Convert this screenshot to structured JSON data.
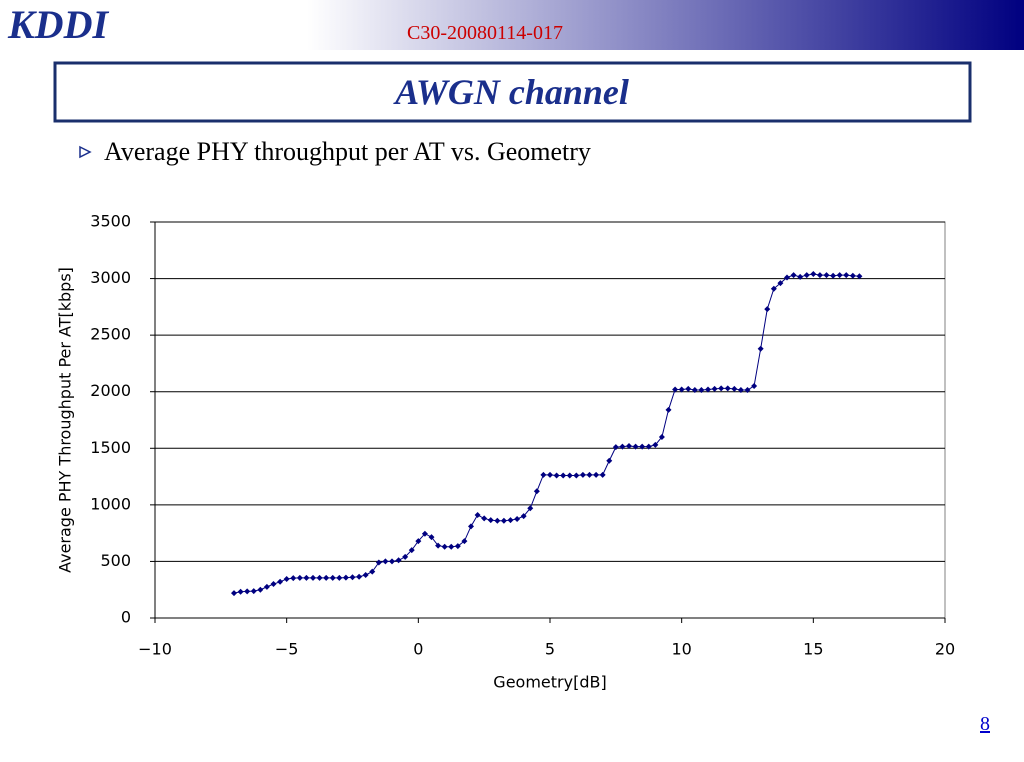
{
  "header": {
    "logo": "KDDI",
    "doc_id": "C30-20080114-017",
    "title": "AWGN channel",
    "bullet": "Average PHY throughput per AT vs. Geometry",
    "page_number": "8"
  },
  "chart_data": {
    "type": "line",
    "xlabel": "Geometry[dB]",
    "ylabel": "Average PHY Throughput Per AT[kbps]",
    "x": [
      -7,
      -6.75,
      -6.5,
      -6.25,
      -6,
      -5.75,
      -5.5,
      -5.25,
      -5,
      -4.75,
      -4.5,
      -4.25,
      -4,
      -3.75,
      -3.5,
      -3.25,
      -3,
      -2.75,
      -2.5,
      -2.25,
      -2,
      -1.75,
      -1.5,
      -1.25,
      -1,
      -0.75,
      -0.5,
      -0.25,
      0,
      0.25,
      0.5,
      0.75,
      1,
      1.25,
      1.5,
      1.75,
      2,
      2.25,
      2.5,
      2.75,
      3,
      3.25,
      3.5,
      3.75,
      4,
      4.25,
      4.5,
      4.75,
      5,
      5.25,
      5.5,
      5.75,
      6,
      6.25,
      6.5,
      6.75,
      7,
      7.25,
      7.5,
      7.75,
      8,
      8.25,
      8.5,
      8.75,
      9,
      9.25,
      9.5,
      9.75,
      10,
      10.25,
      10.5,
      10.75,
      11,
      11.25,
      11.5,
      11.75,
      12,
      12.25,
      12.5,
      12.75,
      13,
      13.25,
      13.5,
      13.75,
      14,
      14.25,
      14.5,
      14.75,
      15,
      15.25,
      15.5,
      15.75,
      16,
      16.25,
      16.5,
      16.75
    ],
    "series": [
      {
        "color": "#000080",
        "values": [
          220,
          232,
          235,
          238,
          250,
          275,
          300,
          320,
          345,
          352,
          355,
          355,
          355,
          355,
          355,
          355,
          355,
          357,
          360,
          365,
          380,
          410,
          490,
          500,
          500,
          510,
          540,
          600,
          680,
          745,
          715,
          640,
          630,
          630,
          635,
          680,
          810,
          910,
          880,
          865,
          860,
          860,
          865,
          875,
          900,
          970,
          1120,
          1265,
          1265,
          1260,
          1260,
          1260,
          1260,
          1265,
          1265,
          1265,
          1265,
          1390,
          1510,
          1515,
          1520,
          1515,
          1515,
          1515,
          1530,
          1600,
          1840,
          2020,
          2020,
          2025,
          2015,
          2015,
          2020,
          2025,
          2030,
          2030,
          2025,
          2015,
          2015,
          2050,
          2380,
          2730,
          2910,
          2960,
          3010,
          3030,
          3015,
          3030,
          3040,
          3030,
          3030,
          3025,
          3030,
          3030,
          3025,
          3020
        ]
      }
    ],
    "xlim": [
      -10,
      20
    ],
    "xticks": [
      {
        "value": -10,
        "label": "−10"
      },
      {
        "value": -5,
        "label": "−5"
      },
      0,
      5,
      10,
      15,
      20
    ],
    "ylim": [
      0,
      3500
    ],
    "yticks": [
      0,
      500,
      1000,
      1500,
      2000,
      2500,
      3000,
      3500
    ],
    "grid": true
  }
}
